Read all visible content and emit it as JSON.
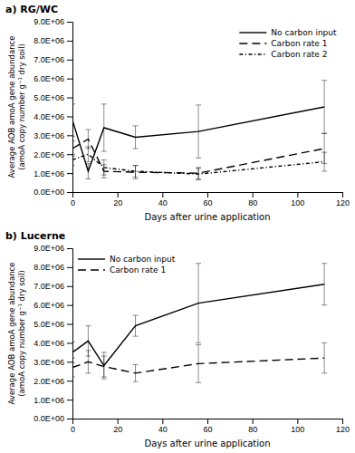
{
  "chart_data": [
    {
      "type": "line",
      "title": "a) RG/WC",
      "x": [
        0,
        7,
        14,
        28,
        56,
        112
      ],
      "series": [
        {
          "name": "No carbon input",
          "color": "#000000",
          "line_style": "solid",
          "values": [
            3800000.0,
            1100000.0,
            3400000.0,
            2900000.0,
            3200000.0,
            4500000.0
          ],
          "errors": [
            850000.0,
            400000.0,
            1250000.0,
            600000.0,
            1400000.0,
            1400000.0
          ]
        },
        {
          "name": "Carbon rate 1",
          "color": "#000000",
          "line_style": "dashed",
          "values": [
            2300000.0,
            2800000.0,
            1100000.0,
            1050000.0,
            1000000.0,
            2300000.0
          ],
          "errors": [
            400000.0,
            500000.0,
            350000.0,
            350000.0,
            300000.0,
            800000.0
          ]
        },
        {
          "name": "Carbon rate 2",
          "color": "#000000",
          "line_style": "dashdot",
          "values": [
            1700000.0,
            2000000.0,
            1300000.0,
            1100000.0,
            950000.0,
            1600000.0
          ],
          "errors": [
            300000.0,
            400000.0,
            400000.0,
            300000.0,
            300000.0,
            500000.0
          ]
        }
      ],
      "xlabel": "Days after urine application",
      "ylabel": "Average AOB amoA gene abundance\n(amoA copy number g⁻¹ dry soil)",
      "xlim": [
        0,
        120
      ],
      "xticks": [
        0,
        20,
        40,
        60,
        80,
        100,
        120
      ],
      "ylim": [
        0,
        9000000.0
      ],
      "yticks": [
        {
          "value": 0,
          "label": "0.0E+00"
        },
        {
          "value": 1000000.0,
          "label": "1.0E+06"
        },
        {
          "value": 2000000.0,
          "label": "2.0E+06"
        },
        {
          "value": 3000000.0,
          "label": "3.0E+06"
        },
        {
          "value": 4000000.0,
          "label": "4.0E+06"
        },
        {
          "value": 5000000.0,
          "label": "5.0E+06"
        },
        {
          "value": 6000000.0,
          "label": "6.0E+06"
        },
        {
          "value": 7000000.0,
          "label": "7.0E+06"
        },
        {
          "value": 8000000.0,
          "label": "8.0E+06"
        },
        {
          "value": 9000000.0,
          "label": "9.0E+06"
        }
      ],
      "legend": "top-right",
      "grid": false
    },
    {
      "type": "line",
      "title": "b) Lucerne",
      "x": [
        0,
        7,
        14,
        28,
        56,
        112
      ],
      "series": [
        {
          "name": "No carbon input",
          "color": "#000000",
          "line_style": "solid",
          "values": [
            3500000.0,
            4100000.0,
            2800000.0,
            4900000.0,
            6100000.0,
            7100000.0
          ],
          "errors": [
            550000.0,
            800000.0,
            700000.0,
            550000.0,
            2100000.0,
            1100000.0
          ]
        },
        {
          "name": "Carbon rate 1",
          "color": "#000000",
          "line_style": "dashed",
          "values": [
            2700000.0,
            3000000.0,
            2750000.0,
            2400000.0,
            2900000.0,
            3200000.0
          ],
          "errors": [
            500000.0,
            600000.0,
            550000.0,
            450000.0,
            1000000.0,
            800000.0
          ]
        }
      ],
      "xlabel": "Days after urine application",
      "ylabel": "Average AOB amoA gene abundance\n(amoA copy number g⁻¹ dry soil)",
      "xlim": [
        0,
        120
      ],
      "xticks": [
        0,
        20,
        40,
        60,
        80,
        100,
        120
      ],
      "ylim": [
        0,
        9000000.0
      ],
      "yticks": [
        {
          "value": 0,
          "label": "0.0E+00"
        },
        {
          "value": 1000000.0,
          "label": "1.0E+06"
        },
        {
          "value": 2000000.0,
          "label": "2.0E+06"
        },
        {
          "value": 3000000.0,
          "label": "3.0E+06"
        },
        {
          "value": 4000000.0,
          "label": "4.0E+06"
        },
        {
          "value": 5000000.0,
          "label": "5.0E+06"
        },
        {
          "value": 6000000.0,
          "label": "6.0E+06"
        },
        {
          "value": 7000000.0,
          "label": "7.0E+06"
        },
        {
          "value": 8000000.0,
          "label": "8.0E+06"
        },
        {
          "value": 9000000.0,
          "label": "9.0E+06"
        }
      ],
      "legend": "top-left",
      "grid": false
    }
  ]
}
